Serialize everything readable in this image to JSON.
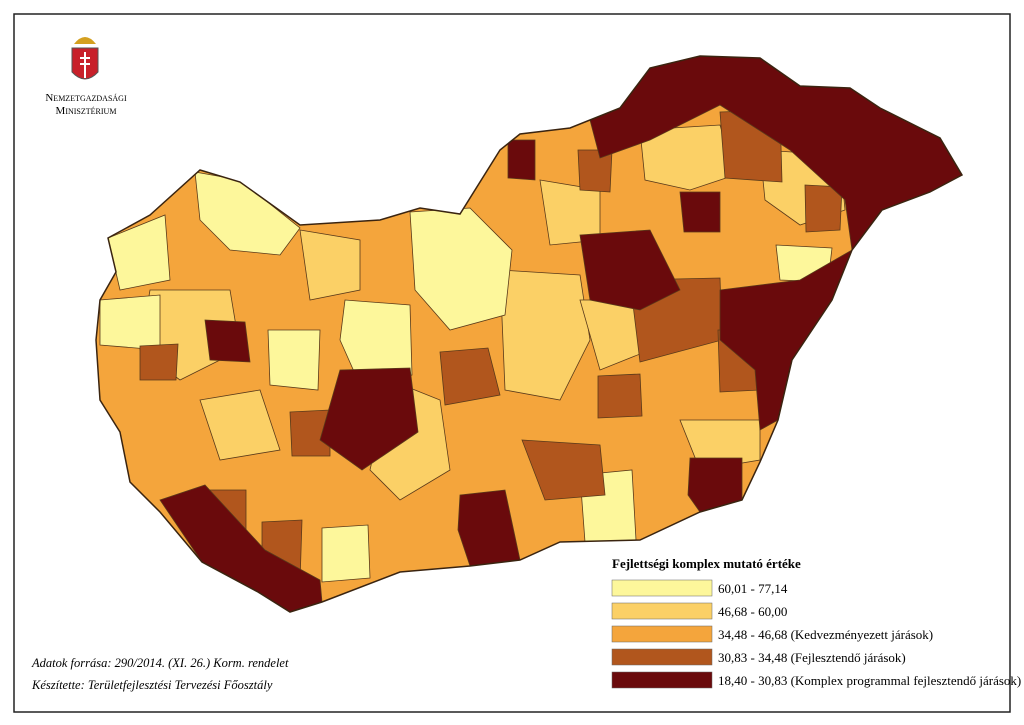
{
  "logo": {
    "line1": "Nemzetgazdasági",
    "line2": "Minisztérium"
  },
  "legend": {
    "title": "Fejlettségi komplex mutató értéke",
    "items": [
      {
        "label": "60,01 - 77,14",
        "color": "#fdf79b"
      },
      {
        "label": "46,68 - 60,00",
        "color": "#fbd066"
      },
      {
        "label": "34,48 - 46,68 (Kedvezményezett járások)",
        "color": "#f4a53c"
      },
      {
        "label": "30,83 - 34,48 (Fejlesztendő járások)",
        "color": "#b1561d"
      },
      {
        "label": "18,40 - 30,83 (Komplex programmal fejlesztendő járások)",
        "color": "#6a0a0c"
      }
    ]
  },
  "footer": {
    "source": "Adatok forrása: 290/2014. (XI. 26.) Korm. rendelet",
    "author": "Készítette: Területfejlesztési Tervezési Főosztály"
  }
}
